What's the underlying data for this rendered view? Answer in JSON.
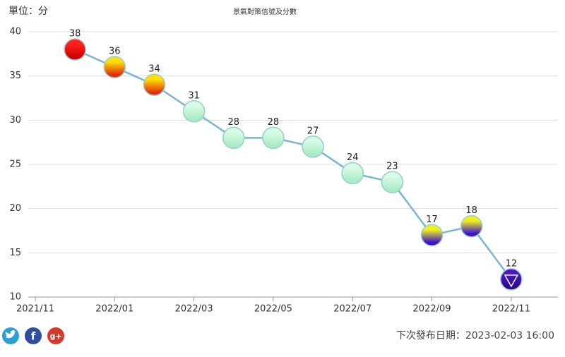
{
  "chart_data": {
    "type": "line",
    "title": "景氣對策信號及分數",
    "unit_label": "單位：分",
    "x": [
      "2021/12",
      "2022/01",
      "2022/02",
      "2022/03",
      "2022/04",
      "2022/05",
      "2022/06",
      "2022/07",
      "2022/08",
      "2022/09",
      "2022/10",
      "2022/11"
    ],
    "series": [
      {
        "name": "分數",
        "color": "#7ab4d8",
        "values": [
          38,
          36,
          34,
          31,
          28,
          28,
          27,
          24,
          23,
          17,
          18,
          12
        ],
        "point_colors": [
          [
            "#ff2020",
            "#d00000"
          ],
          [
            "#ffe000",
            "#e03010"
          ],
          [
            "#ffe000",
            "#e03010"
          ],
          [
            "#d8fbe6",
            "#a8ecc4"
          ],
          [
            "#d8fbe6",
            "#a8ecc4"
          ],
          [
            "#d8fbe6",
            "#a8ecc4"
          ],
          [
            "#d8fbe6",
            "#a8ecc4"
          ],
          [
            "#d8fbe6",
            "#a8ecc4"
          ],
          [
            "#d8fbe6",
            "#a8ecc4"
          ],
          [
            "#f0f020",
            "#3a10d0"
          ],
          [
            "#f0f020",
            "#3a10d0"
          ],
          [
            "#4a18c8",
            "#2a0890"
          ]
        ]
      }
    ],
    "xlim": [
      "2021/11",
      "2022/12"
    ],
    "xticks": [
      "2021/11",
      "2022/01",
      "2022/03",
      "2022/05",
      "2022/07",
      "2022/09",
      "2022/11"
    ],
    "ylim": [
      10,
      40
    ],
    "yticks": [
      10,
      15,
      20,
      25,
      30,
      35,
      40
    ],
    "grid": true,
    "share_buttons": [
      "f",
      "g+"
    ],
    "footer": "下次發布日期：2023-02-03 16:00"
  }
}
